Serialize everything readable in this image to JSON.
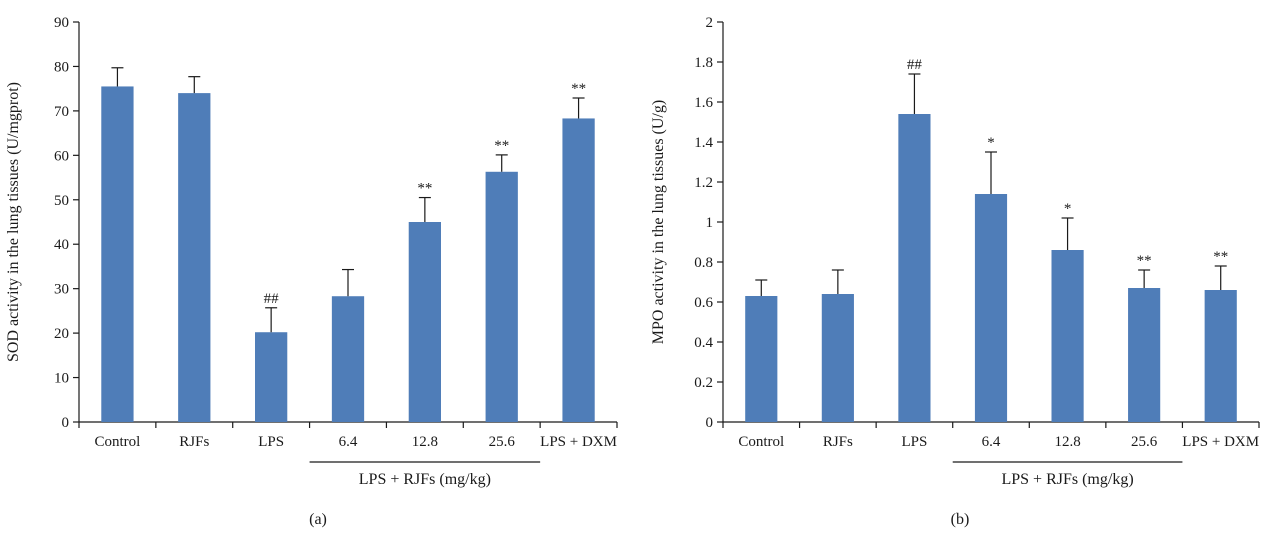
{
  "chart_data": [
    {
      "type": "bar",
      "panel_label": "(a)",
      "ylabel": "SOD activity in the lung tissues (U/mgprot)",
      "categories": [
        "Control",
        "RJFs",
        "LPS",
        "6.4",
        "12.8",
        "25.6",
        "LPS + DXM"
      ],
      "values": [
        75.5,
        74,
        20.2,
        28.3,
        45,
        56.3,
        68.3
      ],
      "errors": [
        4.2,
        3.7,
        5.5,
        6,
        5.5,
        3.8,
        4.6
      ],
      "annotations": [
        "",
        "",
        "##",
        "",
        "**",
        "**",
        "**"
      ],
      "ylim": [
        0,
        90
      ],
      "yticks": [
        "0",
        "10",
        "20",
        "30",
        "40",
        "50",
        "60",
        "70",
        "80",
        "90"
      ],
      "group_label": "LPS + RJFs (mg/kg)",
      "grid": false,
      "color": "#4f7db8"
    },
    {
      "type": "bar",
      "panel_label": "(b)",
      "ylabel": "MPO activity in the lung tissues (U/g)",
      "categories": [
        "Control",
        "RJFs",
        "LPS",
        "6.4",
        "12.8",
        "25.6",
        "LPS + DXM"
      ],
      "values": [
        0.63,
        0.64,
        1.54,
        1.14,
        0.86,
        0.67,
        0.66
      ],
      "errors": [
        0.08,
        0.12,
        0.2,
        0.21,
        0.16,
        0.09,
        0.12
      ],
      "annotations": [
        "",
        "",
        "##",
        "*",
        "*",
        "**",
        "**"
      ],
      "ylim": [
        0,
        2
      ],
      "yticks": [
        "0",
        "0.2",
        "0.4",
        "0.6",
        "0.8",
        "1",
        "1.2",
        "1.4",
        "1.6",
        "1.8",
        "2"
      ],
      "group_label": "LPS + RJFs (mg/kg)",
      "grid": false,
      "color": "#4f7db8"
    }
  ]
}
